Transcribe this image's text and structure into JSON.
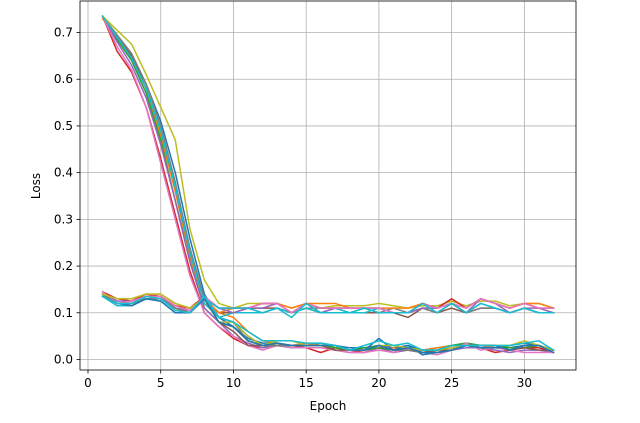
{
  "chart_data": {
    "type": "line",
    "title": "",
    "xlabel": "Epoch",
    "ylabel": "Loss",
    "xlim": [
      -0.55,
      33.55
    ],
    "ylim": [
      -0.0225,
      0.7675
    ],
    "xticks": [
      0,
      5,
      10,
      15,
      20,
      25,
      30
    ],
    "yticks": [
      0.0,
      0.1,
      0.2,
      0.3,
      0.4,
      0.5,
      0.6,
      0.7
    ],
    "grid": true,
    "legend": "none",
    "x": [
      1,
      2,
      3,
      4,
      5,
      6,
      7,
      8,
      9,
      10,
      11,
      12,
      13,
      14,
      15,
      16,
      17,
      18,
      19,
      20,
      21,
      22,
      23,
      24,
      25,
      26,
      27,
      28,
      29,
      30,
      31,
      32
    ],
    "series": [
      {
        "color": "#1f77b4",
        "values": [
          0.735,
          0.69,
          0.65,
          0.59,
          0.51,
          0.4,
          0.26,
          0.14,
          0.09,
          0.07,
          0.045,
          0.035,
          0.035,
          0.03,
          0.03,
          0.035,
          0.03,
          0.025,
          0.025,
          0.03,
          0.025,
          0.03,
          0.02,
          0.025,
          0.03,
          0.035,
          0.03,
          0.025,
          0.03,
          0.035,
          0.03,
          0.02
        ]
      },
      {
        "color": "#ff7f0e",
        "values": [
          0.73,
          0.69,
          0.645,
          0.58,
          0.48,
          0.36,
          0.22,
          0.12,
          0.1,
          0.09,
          0.06,
          0.04,
          0.035,
          0.03,
          0.035,
          0.03,
          0.025,
          0.02,
          0.02,
          0.025,
          0.025,
          0.02,
          0.02,
          0.025,
          0.03,
          0.03,
          0.03,
          0.025,
          0.025,
          0.03,
          0.025,
          0.02
        ]
      },
      {
        "color": "#2ca02c",
        "values": [
          0.735,
          0.685,
          0.64,
          0.57,
          0.47,
          0.34,
          0.21,
          0.11,
          0.08,
          0.07,
          0.04,
          0.03,
          0.035,
          0.03,
          0.03,
          0.03,
          0.025,
          0.02,
          0.025,
          0.03,
          0.02,
          0.025,
          0.02,
          0.02,
          0.03,
          0.035,
          0.03,
          0.03,
          0.025,
          0.03,
          0.03,
          0.02
        ]
      },
      {
        "color": "#d62728",
        "values": [
          0.735,
          0.66,
          0.615,
          0.54,
          0.43,
          0.31,
          0.19,
          0.1,
          0.07,
          0.045,
          0.03,
          0.025,
          0.03,
          0.03,
          0.025,
          0.015,
          0.025,
          0.02,
          0.015,
          0.025,
          0.015,
          0.025,
          0.015,
          0.02,
          0.025,
          0.03,
          0.025,
          0.015,
          0.02,
          0.025,
          0.025,
          0.015
        ]
      },
      {
        "color": "#9467bd",
        "values": [
          0.735,
          0.68,
          0.63,
          0.56,
          0.46,
          0.34,
          0.21,
          0.11,
          0.08,
          0.05,
          0.035,
          0.025,
          0.03,
          0.025,
          0.025,
          0.025,
          0.02,
          0.015,
          0.015,
          0.025,
          0.015,
          0.02,
          0.015,
          0.015,
          0.02,
          0.025,
          0.025,
          0.02,
          0.015,
          0.02,
          0.02,
          0.015
        ]
      },
      {
        "color": "#8c564b",
        "values": [
          0.735,
          0.69,
          0.65,
          0.58,
          0.49,
          0.37,
          0.23,
          0.13,
          0.1,
          0.1,
          0.11,
          0.11,
          0.11,
          0.1,
          0.11,
          0.1,
          0.1,
          0.1,
          0.1,
          0.1,
          0.1,
          0.09,
          0.11,
          0.1,
          0.11,
          0.1,
          0.11,
          0.11,
          0.1,
          0.11,
          0.1,
          0.1
        ]
      },
      {
        "color": "#e377c2",
        "values": [
          0.735,
          0.67,
          0.62,
          0.54,
          0.42,
          0.3,
          0.18,
          0.1,
          0.07,
          0.05,
          0.03,
          0.02,
          0.03,
          0.025,
          0.025,
          0.025,
          0.02,
          0.015,
          0.015,
          0.02,
          0.015,
          0.025,
          0.015,
          0.01,
          0.02,
          0.035,
          0.02,
          0.025,
          0.02,
          0.015,
          0.015,
          0.015
        ]
      },
      {
        "color": "#7f7f7f",
        "values": [
          0.735,
          0.695,
          0.655,
          0.59,
          0.5,
          0.38,
          0.24,
          0.13,
          0.1,
          0.11,
          0.11,
          0.1,
          0.11,
          0.1,
          0.11,
          0.11,
          0.11,
          0.1,
          0.11,
          0.1,
          0.11,
          0.1,
          0.11,
          0.1,
          0.12,
          0.1,
          0.11,
          0.11,
          0.1,
          0.11,
          0.1,
          0.1
        ]
      },
      {
        "color": "#bcbd22",
        "values": [
          0.735,
          0.705,
          0.675,
          0.61,
          0.54,
          0.47,
          0.28,
          0.17,
          0.12,
          0.11,
          0.12,
          0.12,
          0.12,
          0.11,
          0.12,
          0.11,
          0.115,
          0.115,
          0.115,
          0.12,
          0.115,
          0.11,
          0.115,
          0.115,
          0.125,
          0.115,
          0.125,
          0.125,
          0.115,
          0.12,
          0.12,
          0.11
        ]
      },
      {
        "color": "#17becf",
        "values": [
          0.735,
          0.69,
          0.645,
          0.58,
          0.49,
          0.37,
          0.23,
          0.12,
          0.09,
          0.1,
          0.1,
          0.1,
          0.11,
          0.1,
          0.11,
          0.1,
          0.11,
          0.1,
          0.1,
          0.11,
          0.1,
          0.1,
          0.11,
          0.11,
          0.12,
          0.1,
          0.12,
          0.11,
          0.1,
          0.11,
          0.1,
          0.1
        ]
      },
      {
        "color": "#1f77b4",
        "values": [
          0.14,
          0.12,
          0.12,
          0.13,
          0.13,
          0.11,
          0.1,
          0.13,
          0.09,
          0.08,
          0.05,
          0.03,
          0.03,
          0.03,
          0.03,
          0.03,
          0.03,
          0.02,
          0.02,
          0.045,
          0.02,
          0.03,
          0.01,
          0.015,
          0.02,
          0.03,
          0.025,
          0.025,
          0.025,
          0.03,
          0.03,
          0.02
        ]
      },
      {
        "color": "#ff7f0e",
        "values": [
          0.14,
          0.13,
          0.13,
          0.14,
          0.14,
          0.12,
          0.11,
          0.13,
          0.1,
          0.11,
          0.11,
          0.12,
          0.12,
          0.11,
          0.12,
          0.12,
          0.12,
          0.11,
          0.11,
          0.11,
          0.11,
          0.11,
          0.12,
          0.11,
          0.12,
          0.11,
          0.13,
          0.12,
          0.11,
          0.12,
          0.12,
          0.11
        ]
      },
      {
        "color": "#2ca02c",
        "values": [
          0.14,
          0.12,
          0.12,
          0.135,
          0.13,
          0.11,
          0.1,
          0.13,
          0.08,
          0.07,
          0.04,
          0.03,
          0.03,
          0.03,
          0.03,
          0.03,
          0.025,
          0.02,
          0.02,
          0.025,
          0.02,
          0.02,
          0.015,
          0.015,
          0.02,
          0.03,
          0.03,
          0.03,
          0.025,
          0.025,
          0.03,
          0.02
        ]
      },
      {
        "color": "#d62728",
        "values": [
          0.145,
          0.13,
          0.125,
          0.14,
          0.135,
          0.115,
          0.11,
          0.135,
          0.11,
          0.11,
          0.11,
          0.12,
          0.12,
          0.1,
          0.12,
          0.11,
          0.11,
          0.11,
          0.11,
          0.11,
          0.1,
          0.1,
          0.12,
          0.11,
          0.13,
          0.11,
          0.13,
          0.12,
          0.11,
          0.12,
          0.11,
          0.11
        ]
      },
      {
        "color": "#9467bd",
        "values": [
          0.14,
          0.125,
          0.125,
          0.135,
          0.135,
          0.11,
          0.105,
          0.13,
          0.11,
          0.1,
          0.11,
          0.11,
          0.12,
          0.1,
          0.12,
          0.1,
          0.11,
          0.11,
          0.11,
          0.11,
          0.1,
          0.1,
          0.11,
          0.11,
          0.12,
          0.1,
          0.13,
          0.12,
          0.1,
          0.11,
          0.11,
          0.1
        ]
      },
      {
        "color": "#8c564b",
        "values": [
          0.14,
          0.12,
          0.12,
          0.13,
          0.13,
          0.11,
          0.1,
          0.13,
          0.08,
          0.06,
          0.03,
          0.03,
          0.03,
          0.03,
          0.03,
          0.03,
          0.02,
          0.02,
          0.02,
          0.03,
          0.02,
          0.02,
          0.015,
          0.02,
          0.02,
          0.03,
          0.03,
          0.03,
          0.02,
          0.025,
          0.02,
          0.02
        ]
      },
      {
        "color": "#e377c2",
        "values": [
          0.145,
          0.12,
          0.125,
          0.135,
          0.135,
          0.115,
          0.105,
          0.135,
          0.11,
          0.11,
          0.11,
          0.12,
          0.12,
          0.1,
          0.12,
          0.11,
          0.11,
          0.11,
          0.11,
          0.11,
          0.1,
          0.1,
          0.12,
          0.11,
          0.12,
          0.11,
          0.13,
          0.12,
          0.11,
          0.12,
          0.11,
          0.11
        ]
      },
      {
        "color": "#7f7f7f",
        "values": [
          0.14,
          0.12,
          0.12,
          0.13,
          0.13,
          0.11,
          0.1,
          0.13,
          0.09,
          0.08,
          0.04,
          0.03,
          0.03,
          0.03,
          0.03,
          0.03,
          0.03,
          0.02,
          0.02,
          0.03,
          0.02,
          0.02,
          0.015,
          0.015,
          0.02,
          0.03,
          0.03,
          0.03,
          0.02,
          0.03,
          0.03,
          0.02
        ]
      },
      {
        "color": "#bcbd22",
        "values": [
          0.14,
          0.13,
          0.13,
          0.14,
          0.14,
          0.12,
          0.11,
          0.13,
          0.08,
          0.08,
          0.05,
          0.03,
          0.04,
          0.04,
          0.03,
          0.03,
          0.03,
          0.02,
          0.02,
          0.03,
          0.03,
          0.025,
          0.02,
          0.02,
          0.025,
          0.03,
          0.03,
          0.03,
          0.03,
          0.04,
          0.03,
          0.02
        ]
      },
      {
        "color": "#17becf",
        "values": [
          0.135,
          0.115,
          0.115,
          0.13,
          0.125,
          0.1,
          0.1,
          0.13,
          0.11,
          0.11,
          0.11,
          0.1,
          0.11,
          0.09,
          0.12,
          0.1,
          0.1,
          0.1,
          0.11,
          0.1,
          0.1,
          0.1,
          0.12,
          0.1,
          0.12,
          0.1,
          0.12,
          0.11,
          0.1,
          0.11,
          0.1,
          0.1
        ]
      },
      {
        "color": "#1f77b4",
        "values": [
          0.135,
          0.12,
          0.115,
          0.13,
          0.125,
          0.1,
          0.1,
          0.13,
          0.08,
          0.07,
          0.04,
          0.03,
          0.035,
          0.03,
          0.03,
          0.03,
          0.03,
          0.02,
          0.02,
          0.03,
          0.02,
          0.025,
          0.015,
          0.015,
          0.02,
          0.03,
          0.03,
          0.03,
          0.02,
          0.03,
          0.03,
          0.015
        ]
      },
      {
        "color": "#17becf",
        "values": [
          0.135,
          0.12,
          0.12,
          0.135,
          0.13,
          0.105,
          0.1,
          0.135,
          0.09,
          0.08,
          0.06,
          0.04,
          0.04,
          0.04,
          0.035,
          0.035,
          0.03,
          0.02,
          0.03,
          0.04,
          0.03,
          0.035,
          0.02,
          0.02,
          0.03,
          0.03,
          0.03,
          0.03,
          0.03,
          0.035,
          0.04,
          0.02
        ]
      }
    ]
  }
}
